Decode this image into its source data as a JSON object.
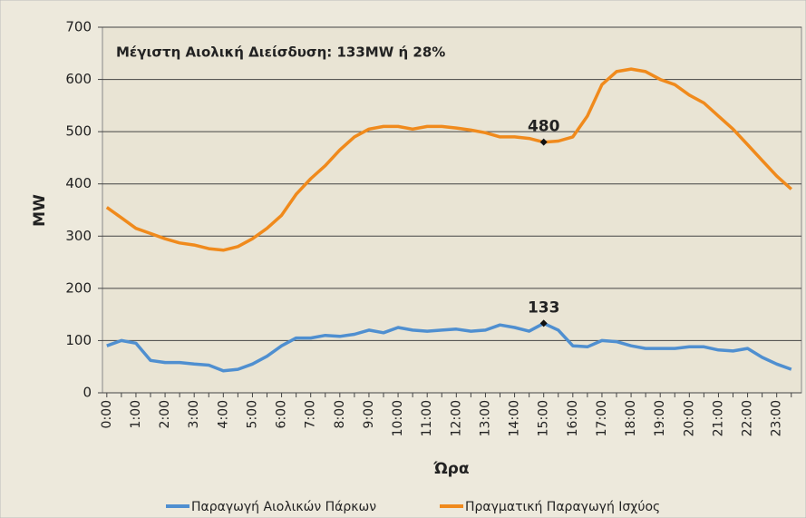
{
  "chart_data": {
    "type": "line",
    "title": "Μέγιστη Αιολική Διείσδυση: 133MW ή 28%",
    "xlabel": "Ώρα",
    "ylabel": "MW",
    "categories": [
      "0:00",
      null,
      "1:00",
      null,
      "2:00",
      null,
      "3:00",
      null,
      "4:00",
      null,
      "5:00",
      null,
      "6:00",
      null,
      "7:00",
      null,
      "8:00",
      null,
      "9:00",
      null,
      "10:00",
      null,
      "11:00",
      null,
      "12:00",
      null,
      "13:00",
      null,
      "14:00",
      null,
      "15:00",
      null,
      "16:00",
      null,
      "17:00",
      null,
      "18:00",
      null,
      "19:00",
      null,
      "20:00",
      null,
      "21:00",
      null,
      "22:00",
      null,
      "23:00",
      null
    ],
    "series": [
      {
        "name": "Παραγωγή Αιολικών Πάρκων",
        "color": "#4f8fd0",
        "values": [
          90,
          100,
          95,
          62,
          58,
          58,
          55,
          53,
          42,
          45,
          55,
          70,
          90,
          105,
          105,
          110,
          108,
          112,
          120,
          115,
          125,
          120,
          118,
          120,
          122,
          118,
          120,
          130,
          125,
          118,
          133,
          120,
          90,
          88,
          100,
          98,
          90,
          85,
          85,
          85,
          88,
          88,
          82,
          80,
          85,
          68,
          55,
          45
        ]
      },
      {
        "name": "Πραγματική Παραγωγή Ισχύος",
        "color": "#f08a1c",
        "values": [
          355,
          335,
          315,
          305,
          295,
          287,
          283,
          276,
          273,
          280,
          295,
          315,
          340,
          380,
          410,
          435,
          465,
          490,
          505,
          510,
          510,
          505,
          510,
          510,
          507,
          503,
          498,
          490,
          490,
          487,
          480,
          482,
          490,
          530,
          590,
          615,
          620,
          615,
          600,
          590,
          570,
          555,
          530,
          505,
          475,
          445,
          415,
          390
        ]
      }
    ],
    "annotations": [
      {
        "text": "480",
        "x": "15:00",
        "series": "Πραγματική Παραγωγή Ισχύος"
      },
      {
        "text": "133",
        "x": "15:00",
        "series": "Παραγωγή Αιολικών Πάρκων"
      }
    ],
    "ylim": [
      0,
      700
    ],
    "yticks": [
      0,
      100,
      200,
      300,
      400,
      500,
      600,
      700
    ],
    "grid": true,
    "legend": "bottom"
  }
}
